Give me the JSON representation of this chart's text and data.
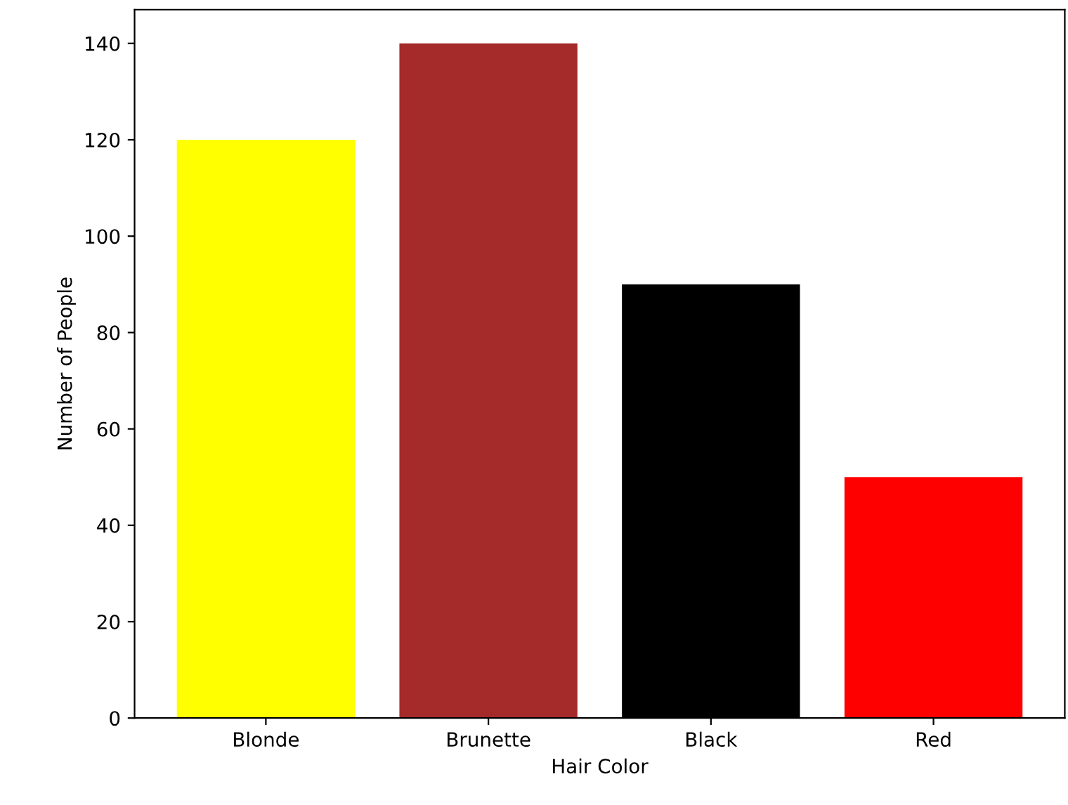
{
  "chart_data": {
    "type": "bar",
    "xlabel": "Hair Color",
    "ylabel": "Number of People",
    "categories": [
      "Blonde",
      "Brunette",
      "Black",
      "Red"
    ],
    "values": [
      120,
      140,
      90,
      50
    ],
    "colors": [
      "#ffff00",
      "#a52a2a",
      "#000000",
      "#ff0000"
    ],
    "ylim": [
      0,
      147
    ],
    "yticks": [
      0,
      20,
      40,
      60,
      80,
      100,
      120,
      140
    ],
    "grid": false
  }
}
